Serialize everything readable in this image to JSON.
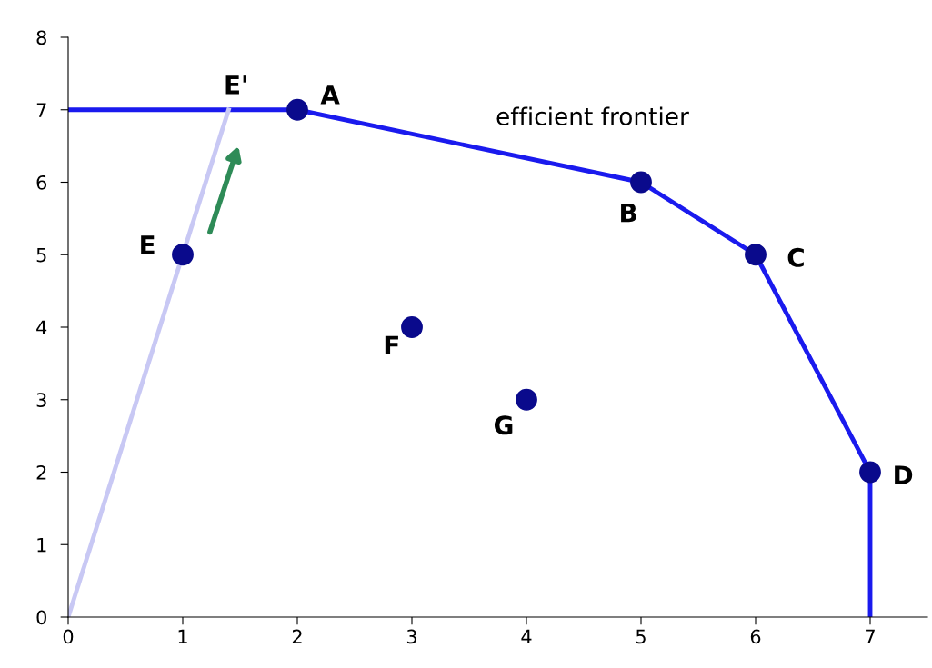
{
  "chart_data": {
    "type": "scatter",
    "xlim": [
      0,
      7.5
    ],
    "ylim": [
      0,
      8
    ],
    "xticks": [
      0,
      1,
      2,
      3,
      4,
      5,
      6,
      7
    ],
    "yticks": [
      0,
      1,
      2,
      3,
      4,
      5,
      6,
      7,
      8
    ],
    "grid": false,
    "marker": "circle",
    "series": [
      {
        "type": "line",
        "color": "#1a1aee",
        "x": [
          0,
          2,
          5,
          6,
          7,
          7
        ],
        "values": [
          7,
          7,
          6,
          5,
          2,
          0
        ],
        "marker": "none"
      },
      {
        "type": "line",
        "color": "#c8c8f4",
        "x": [
          0,
          1.4
        ],
        "values": [
          0,
          7
        ],
        "marker": "none"
      },
      {
        "color": "#0a0a8c",
        "x": [
          2,
          5,
          6,
          7,
          1,
          3,
          4
        ],
        "values": [
          7,
          6,
          5,
          2,
          5,
          4,
          3
        ]
      }
    ],
    "annotations": [
      {
        "text": "A",
        "x": 2,
        "y": 7
      },
      {
        "text": "B",
        "x": 5,
        "y": 6
      },
      {
        "text": "C",
        "x": 6,
        "y": 5
      },
      {
        "text": "D",
        "x": 7,
        "y": 2
      },
      {
        "text": "E",
        "x": 1,
        "y": 5
      },
      {
        "text": "F",
        "x": 3,
        "y": 4
      },
      {
        "text": "G",
        "x": 4,
        "y": 3
      },
      {
        "text": "E'",
        "x": 1.4,
        "y": 7
      },
      "efficient frontier"
    ]
  }
}
